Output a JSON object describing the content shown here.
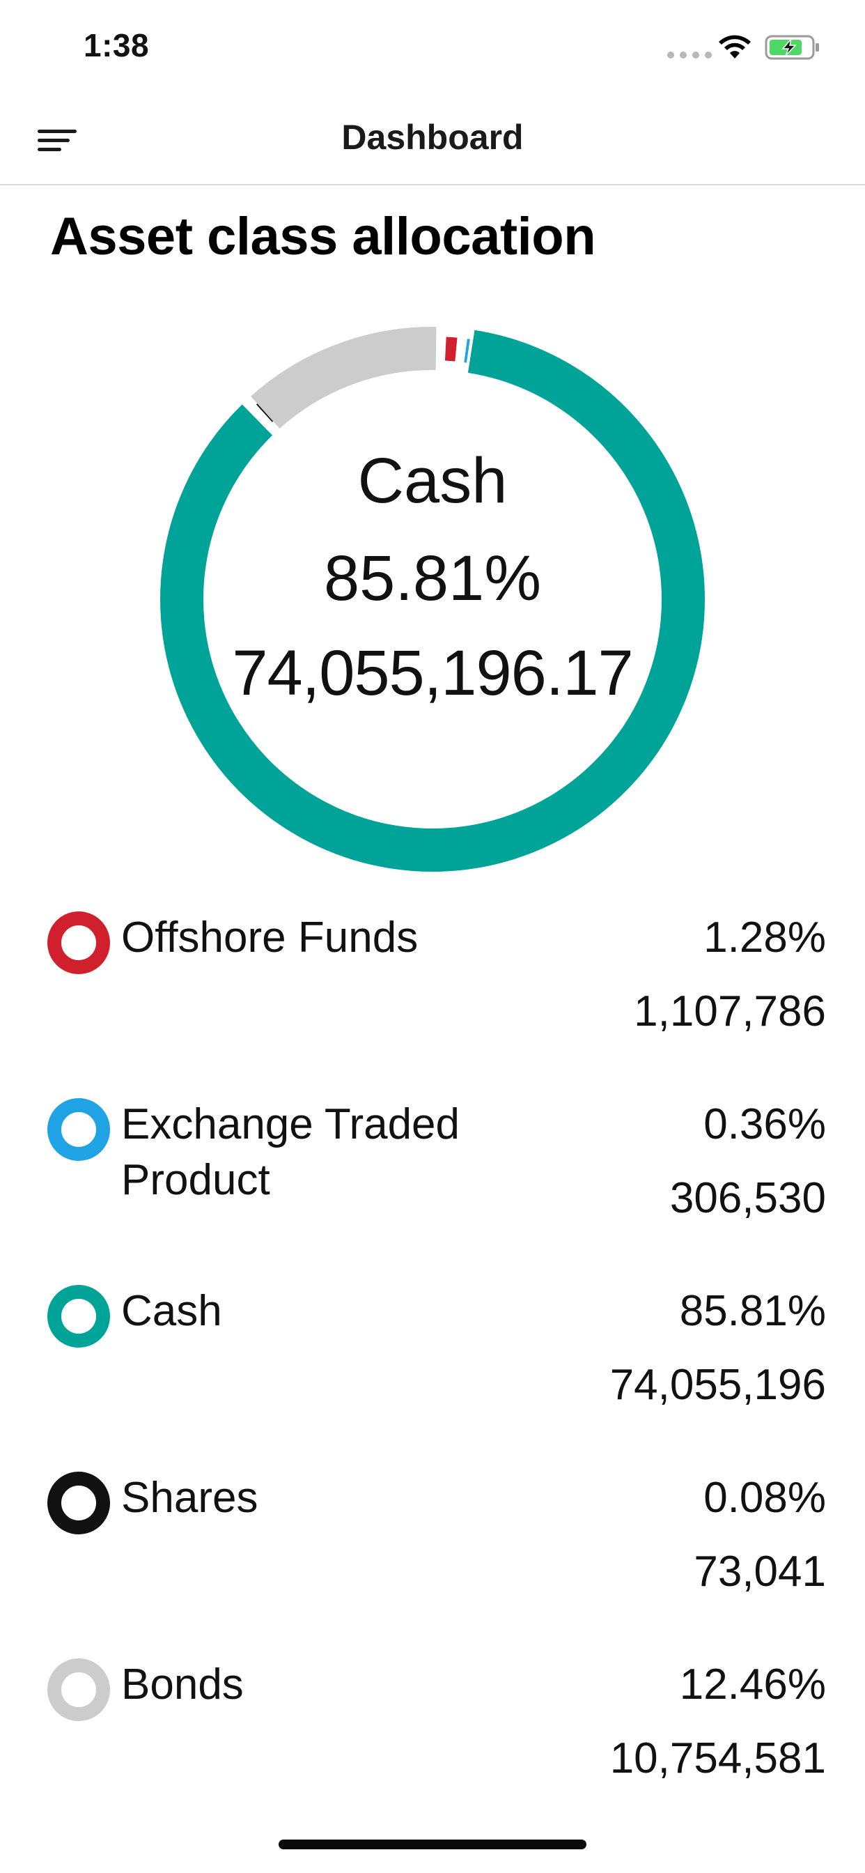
{
  "status_bar": {
    "time": "1:38",
    "icons": [
      "cellular-signal-icon",
      "wifi-icon",
      "battery-charging-icon"
    ]
  },
  "nav": {
    "menu_icon": "menu-icon",
    "title": "Dashboard"
  },
  "section": {
    "title": "Asset class allocation"
  },
  "donut": {
    "center_label": "Cash",
    "center_percent": "85.81%",
    "center_amount": "74,055,196.17"
  },
  "legend": {
    "items": [
      {
        "name": "Offshore Funds",
        "percent": "1.28%",
        "value": "1,107,786",
        "color": "#d0202e"
      },
      {
        "name": "Exchange Traded Product",
        "percent": "0.36%",
        "value": "306,530",
        "color": "#1fa3e4"
      },
      {
        "name": "Cash",
        "percent": "85.81%",
        "value": "74,055,196",
        "color": "#00a398"
      },
      {
        "name": "Shares",
        "percent": "0.08%",
        "value": "73,041",
        "color": "#111111"
      },
      {
        "name": "Bonds",
        "percent": "12.46%",
        "value": "10,754,581",
        "color": "#cccccc"
      }
    ]
  },
  "chart_data": {
    "type": "pie",
    "categories": [
      "Offshore Funds",
      "Exchange Traded Product",
      "Cash",
      "Shares",
      "Bonds"
    ],
    "values": [
      1.28,
      0.36,
      85.81,
      0.08,
      12.46
    ],
    "amounts": [
      1107786,
      306530,
      74055196,
      73041,
      10754581
    ],
    "colors": [
      "#d0202e",
      "#1fa3e4",
      "#00a398",
      "#111111",
      "#cccccc"
    ],
    "title": "Asset class allocation",
    "style": "donut",
    "selected": "Cash"
  }
}
